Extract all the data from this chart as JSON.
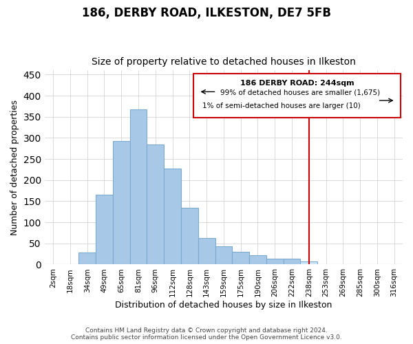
{
  "title": "186, DERBY ROAD, ILKESTON, DE7 5FB",
  "subtitle": "Size of property relative to detached houses in Ilkeston",
  "xlabel": "Distribution of detached houses by size in Ilkeston",
  "ylabel": "Number of detached properties",
  "categories": [
    "2sqm",
    "18sqm",
    "34sqm",
    "49sqm",
    "65sqm",
    "81sqm",
    "96sqm",
    "112sqm",
    "128sqm",
    "143sqm",
    "159sqm",
    "175sqm",
    "190sqm",
    "206sqm",
    "222sqm",
    "238sqm",
    "253sqm",
    "269sqm",
    "285sqm",
    "300sqm",
    "316sqm"
  ],
  "values": [
    0,
    0,
    28,
    165,
    293,
    368,
    285,
    228,
    135,
    62,
    43,
    30,
    22,
    14,
    14,
    8,
    0,
    0,
    0,
    0,
    0
  ],
  "bar_color_default": "#a8c8e8",
  "bar_color_highlight": "#d0e8f8",
  "highlight_index": 15,
  "vline_color": "#cc0000",
  "legend_text_line1": "186 DERBY ROAD: 244sqm",
  "legend_text_line2": "99% of detached houses are smaller (1,675)",
  "legend_text_line3": "1% of semi-detached houses are larger (10)",
  "ylim": [
    0,
    460
  ],
  "yticks": [
    0,
    50,
    100,
    150,
    200,
    250,
    300,
    350,
    400,
    450
  ],
  "footer_line1": "Contains HM Land Registry data © Crown copyright and database right 2024.",
  "footer_line2": "Contains public sector information licensed under the Open Government Licence v3.0.",
  "background_color": "#ffffff",
  "grid_color": "#cccccc",
  "bar_edge_color": "#7aaad0",
  "title_fontsize": 12,
  "subtitle_fontsize": 10
}
